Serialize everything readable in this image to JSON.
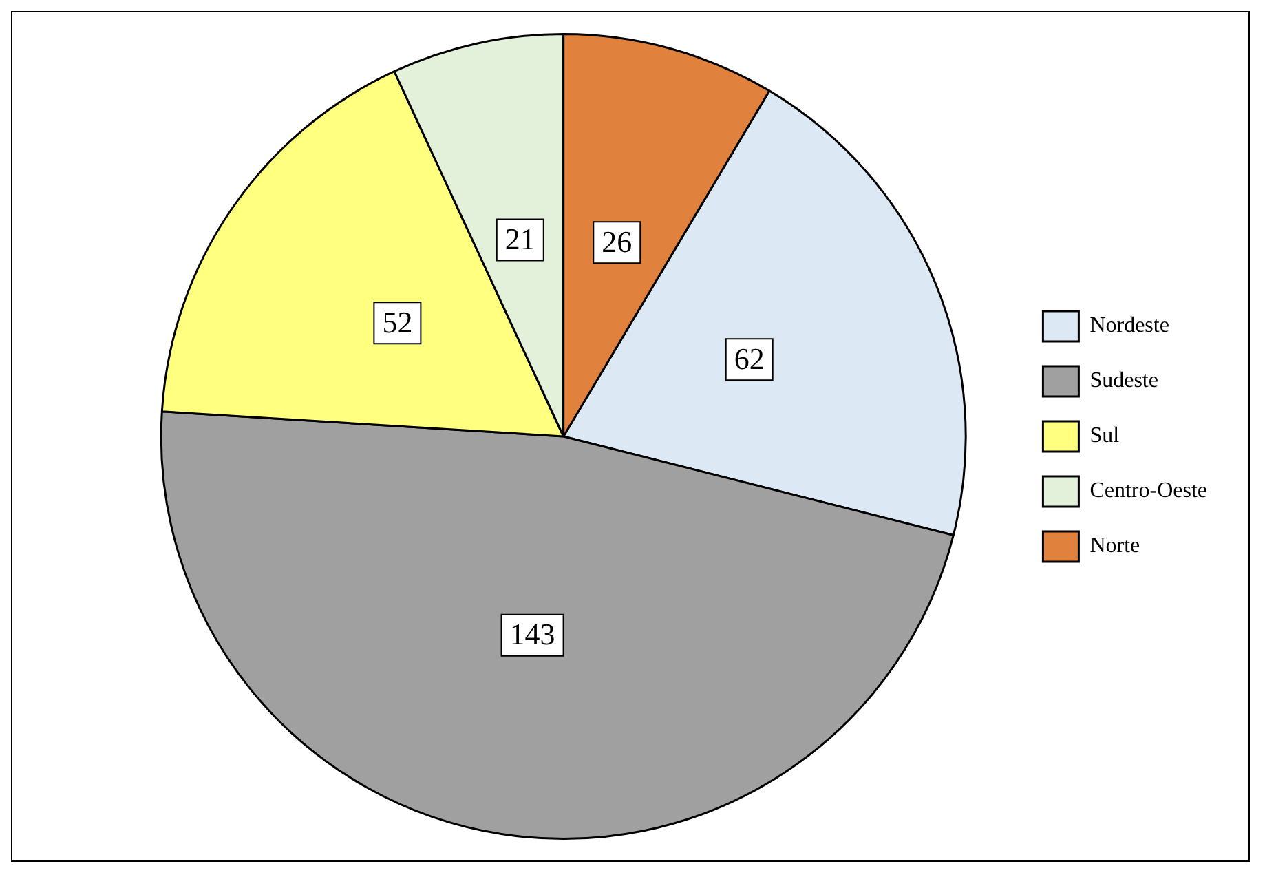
{
  "chart_data": {
    "type": "pie",
    "categories": [
      "Nordeste",
      "Sudeste",
      "Sul",
      "Centro-Oeste",
      "Norte"
    ],
    "values": [
      62,
      143,
      52,
      21,
      26
    ],
    "colors": [
      "#dce9f4",
      "#a0a0a0",
      "#ffff80",
      "#e3f0da",
      "#e0823e"
    ],
    "data_labels": true,
    "legend": "right"
  }
}
